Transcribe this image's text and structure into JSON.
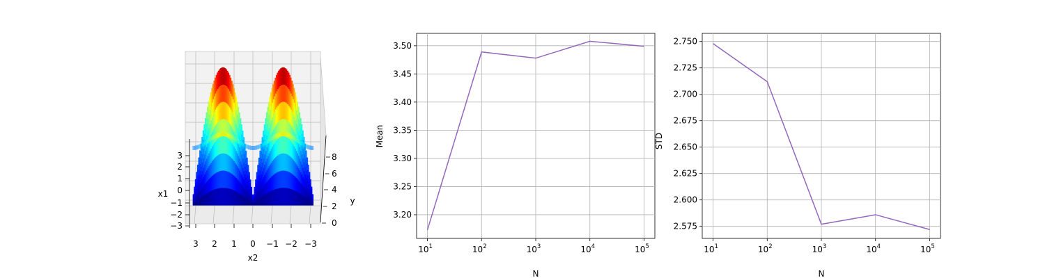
{
  "chart_data": [
    {
      "type": "surface3d",
      "xlabel": "x2",
      "ylabel": "y",
      "zlabel": "x1",
      "x_ticks": [
        "3",
        "2",
        "1",
        "0",
        "−1",
        "−2",
        "−3"
      ],
      "y_ticks": [
        "0",
        "2",
        "4",
        "6",
        "8"
      ],
      "z_ticks": [
        "−3",
        "−2",
        "−1",
        "0",
        "1",
        "2",
        "3"
      ],
      "colormap": "jet",
      "colormap_stops": [
        "#00007f",
        "#0000ff",
        "#007fff",
        "#00ffff",
        "#7fff7f",
        "#ffff00",
        "#ff7f00",
        "#ff0000",
        "#7f0000"
      ]
    },
    {
      "type": "line",
      "xlabel": "N",
      "ylabel": "Mean",
      "xscale": "log",
      "x": [
        10,
        100,
        1000,
        10000,
        100000
      ],
      "x_tick_labels": [
        [
          "10",
          "1"
        ],
        [
          "10",
          "2"
        ],
        [
          "10",
          "3"
        ],
        [
          "10",
          "4"
        ],
        [
          "10",
          "5"
        ]
      ],
      "y_ticks": [
        "3.20",
        "3.25",
        "3.30",
        "3.35",
        "3.40",
        "3.45",
        "3.50"
      ],
      "ylim": [
        3.158,
        3.522
      ],
      "grid": true,
      "color": "#9467bd",
      "series": [
        {
          "values": [
            3.173,
            3.489,
            3.478,
            3.508,
            3.499
          ]
        }
      ]
    },
    {
      "type": "line",
      "xlabel": "N",
      "ylabel": "STD",
      "xscale": "log",
      "x": [
        10,
        100,
        1000,
        10000,
        100000
      ],
      "x_tick_labels": [
        [
          "10",
          "1"
        ],
        [
          "10",
          "2"
        ],
        [
          "10",
          "3"
        ],
        [
          "10",
          "4"
        ],
        [
          "10",
          "5"
        ]
      ],
      "y_ticks": [
        "2.575",
        "2.600",
        "2.625",
        "2.650",
        "2.675",
        "2.700",
        "2.725",
        "2.750"
      ],
      "ylim": [
        2.5636,
        2.7577
      ],
      "grid": true,
      "color": "#9467bd",
      "series": [
        {
          "values": [
            2.748,
            2.712,
            2.577,
            2.586,
            2.572
          ]
        }
      ]
    }
  ]
}
